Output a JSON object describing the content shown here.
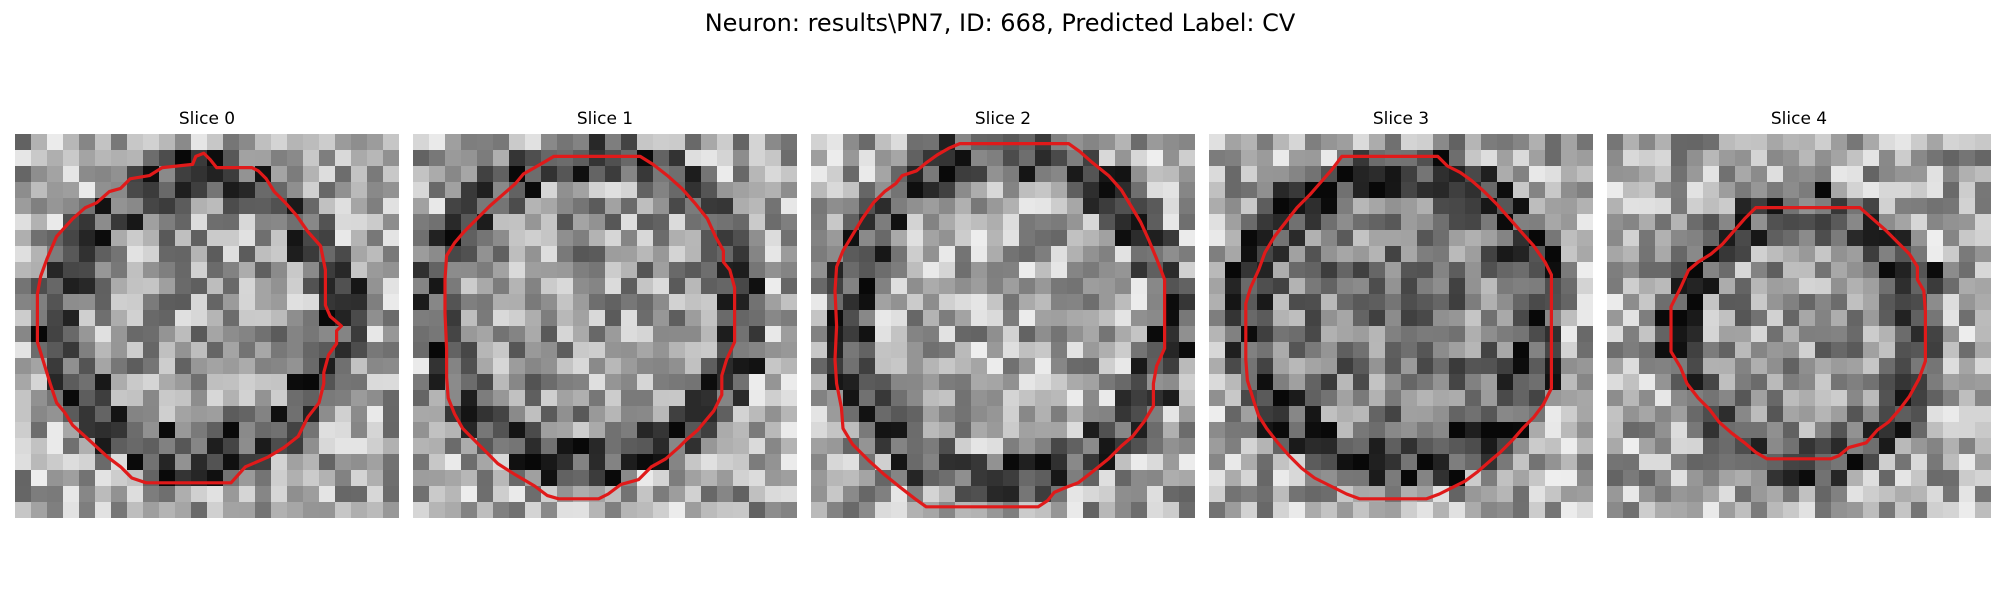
{
  "figure": {
    "title": "Neuron: results\\PN7, ID: 668, Predicted Label: CV"
  },
  "slices": [
    {
      "title": "Slice 0",
      "seed": 11,
      "blob": {
        "cx": 11.5,
        "cy": 11.5,
        "r": 8.8,
        "inner": 0.62,
        "ring": 0.3
      },
      "contour": [
        [
          11.8,
          1.2
        ],
        [
          11.3,
          1.4
        ],
        [
          11.1,
          1.9
        ],
        [
          9.2,
          2.1
        ],
        [
          8.4,
          2.6
        ],
        [
          7.2,
          2.8
        ],
        [
          6.6,
          3.4
        ],
        [
          5.9,
          3.6
        ],
        [
          5.1,
          4.3
        ],
        [
          4.4,
          4.6
        ],
        [
          3.6,
          5.3
        ],
        [
          2.6,
          6.4
        ],
        [
          2.0,
          7.8
        ],
        [
          1.6,
          8.9
        ],
        [
          1.4,
          10.0
        ],
        [
          1.4,
          11.6
        ],
        [
          1.4,
          13.0
        ],
        [
          1.8,
          14.3
        ],
        [
          2.2,
          15.6
        ],
        [
          2.6,
          16.8
        ],
        [
          3.1,
          17.4
        ],
        [
          3.6,
          18.2
        ],
        [
          4.6,
          19.1
        ],
        [
          5.8,
          20.2
        ],
        [
          6.6,
          20.8
        ],
        [
          7.3,
          21.5
        ],
        [
          8.2,
          21.8
        ],
        [
          12.3,
          21.8
        ],
        [
          13.5,
          21.8
        ],
        [
          14.4,
          20.8
        ],
        [
          15.8,
          20.2
        ],
        [
          16.8,
          19.6
        ],
        [
          17.7,
          18.9
        ],
        [
          18.3,
          17.7
        ],
        [
          19.0,
          16.8
        ],
        [
          19.3,
          15.6
        ],
        [
          19.3,
          14.9
        ],
        [
          19.6,
          13.8
        ],
        [
          20.1,
          13.1
        ],
        [
          20.1,
          12.3
        ],
        [
          20.4,
          12.0
        ],
        [
          19.7,
          11.4
        ],
        [
          19.4,
          10.7
        ],
        [
          19.4,
          8.5
        ],
        [
          19.1,
          7.0
        ],
        [
          18.3,
          6.1
        ],
        [
          17.6,
          5.1
        ],
        [
          16.9,
          4.3
        ],
        [
          16.2,
          3.6
        ],
        [
          15.7,
          2.8
        ],
        [
          15.2,
          2.3
        ],
        [
          14.8,
          2.1
        ],
        [
          12.6,
          2.1
        ],
        [
          12.2,
          1.6
        ]
      ]
    },
    {
      "title": "Slice 1",
      "seed": 23,
      "blob": {
        "cx": 11.2,
        "cy": 11.0,
        "r": 9.6,
        "inner": 0.6,
        "ring": 0.28
      },
      "contour": [
        [
          8.8,
          1.4
        ],
        [
          14.2,
          1.4
        ],
        [
          15.0,
          1.9
        ],
        [
          15.9,
          2.6
        ],
        [
          16.8,
          3.4
        ],
        [
          17.6,
          4.3
        ],
        [
          18.4,
          5.3
        ],
        [
          18.9,
          6.4
        ],
        [
          19.4,
          7.3
        ],
        [
          19.4,
          8.0
        ],
        [
          19.8,
          8.5
        ],
        [
          20.1,
          9.6
        ],
        [
          20.1,
          11.0
        ],
        [
          20.1,
          12.3
        ],
        [
          20.1,
          13.0
        ],
        [
          19.6,
          14.1
        ],
        [
          19.3,
          15.1
        ],
        [
          19.3,
          16.3
        ],
        [
          18.8,
          17.3
        ],
        [
          18.3,
          17.9
        ],
        [
          17.8,
          18.5
        ],
        [
          17.1,
          19.1
        ],
        [
          16.6,
          19.6
        ],
        [
          15.8,
          20.3
        ],
        [
          14.9,
          20.8
        ],
        [
          14.1,
          21.6
        ],
        [
          13.0,
          21.9
        ],
        [
          12.2,
          22.5
        ],
        [
          11.6,
          22.8
        ],
        [
          9.1,
          22.8
        ],
        [
          8.4,
          22.6
        ],
        [
          7.6,
          22.0
        ],
        [
          6.4,
          21.3
        ],
        [
          5.3,
          20.6
        ],
        [
          4.6,
          19.9
        ],
        [
          3.9,
          19.2
        ],
        [
          3.1,
          18.4
        ],
        [
          2.6,
          17.5
        ],
        [
          2.2,
          16.5
        ],
        [
          2.1,
          15.2
        ],
        [
          2.1,
          13.4
        ],
        [
          2.0,
          11.2
        ],
        [
          2.0,
          9.1
        ],
        [
          2.1,
          7.6
        ],
        [
          2.6,
          6.8
        ],
        [
          3.2,
          6.1
        ],
        [
          4.0,
          5.3
        ],
        [
          4.8,
          4.5
        ],
        [
          5.6,
          3.8
        ],
        [
          6.4,
          3.1
        ],
        [
          6.9,
          2.5
        ],
        [
          7.6,
          2.1
        ],
        [
          8.3,
          1.7
        ]
      ]
    },
    {
      "title": "Slice 2",
      "seed": 37,
      "blob": {
        "cx": 12.2,
        "cy": 11.4,
        "r": 10.2,
        "inner": 0.66,
        "ring": 0.3
      },
      "contour": [
        [
          9.3,
          0.6
        ],
        [
          16.1,
          0.6
        ],
        [
          16.8,
          1.1
        ],
        [
          17.6,
          1.8
        ],
        [
          18.6,
          2.6
        ],
        [
          19.4,
          3.5
        ],
        [
          20.0,
          4.5
        ],
        [
          20.6,
          5.5
        ],
        [
          21.1,
          6.6
        ],
        [
          21.6,
          7.8
        ],
        [
          22.1,
          9.1
        ],
        [
          22.1,
          10.5
        ],
        [
          22.1,
          12.0
        ],
        [
          22.1,
          13.4
        ],
        [
          21.6,
          14.5
        ],
        [
          21.4,
          15.6
        ],
        [
          21.4,
          17.0
        ],
        [
          20.8,
          18.0
        ],
        [
          20.1,
          18.9
        ],
        [
          19.4,
          19.5
        ],
        [
          18.6,
          20.3
        ],
        [
          17.6,
          21.1
        ],
        [
          16.7,
          21.8
        ],
        [
          15.9,
          22.1
        ],
        [
          15.2,
          22.4
        ],
        [
          14.8,
          22.9
        ],
        [
          14.2,
          23.3
        ],
        [
          7.2,
          23.3
        ],
        [
          6.5,
          22.8
        ],
        [
          5.6,
          22.1
        ],
        [
          4.6,
          21.3
        ],
        [
          3.6,
          20.4
        ],
        [
          2.6,
          19.4
        ],
        [
          2.0,
          18.4
        ],
        [
          1.9,
          17.1
        ],
        [
          1.6,
          15.6
        ],
        [
          1.5,
          14.1
        ],
        [
          1.6,
          12.0
        ],
        [
          1.5,
          9.8
        ],
        [
          1.6,
          8.3
        ],
        [
          2.0,
          7.3
        ],
        [
          2.6,
          6.3
        ],
        [
          3.2,
          5.3
        ],
        [
          3.9,
          4.3
        ],
        [
          4.6,
          3.6
        ],
        [
          5.3,
          3.1
        ],
        [
          5.7,
          2.6
        ],
        [
          6.6,
          2.3
        ],
        [
          7.2,
          1.8
        ],
        [
          7.9,
          1.3
        ],
        [
          8.6,
          0.9
        ]
      ]
    },
    {
      "title": "Slice 3",
      "seed": 53,
      "blob": {
        "cx": 11.6,
        "cy": 11.5,
        "r": 9.4,
        "inner": 0.5,
        "ring": 0.26
      },
      "contour": [
        [
          8.3,
          1.4
        ],
        [
          14.3,
          1.4
        ],
        [
          14.9,
          2.0
        ],
        [
          15.7,
          2.4
        ],
        [
          16.4,
          2.9
        ],
        [
          17.2,
          3.6
        ],
        [
          18.0,
          4.4
        ],
        [
          18.8,
          5.3
        ],
        [
          19.5,
          6.1
        ],
        [
          20.3,
          7.0
        ],
        [
          21.0,
          8.0
        ],
        [
          21.4,
          8.8
        ],
        [
          21.4,
          10.4
        ],
        [
          21.4,
          12.6
        ],
        [
          21.4,
          14.6
        ],
        [
          21.4,
          15.9
        ],
        [
          20.9,
          16.9
        ],
        [
          20.3,
          17.7
        ],
        [
          19.6,
          18.4
        ],
        [
          19.0,
          19.1
        ],
        [
          18.2,
          19.9
        ],
        [
          17.6,
          20.4
        ],
        [
          16.8,
          21.1
        ],
        [
          16.0,
          21.7
        ],
        [
          15.2,
          22.1
        ],
        [
          14.4,
          22.5
        ],
        [
          13.6,
          22.8
        ],
        [
          9.4,
          22.8
        ],
        [
          8.6,
          22.5
        ],
        [
          7.6,
          22.0
        ],
        [
          6.6,
          21.5
        ],
        [
          5.8,
          20.9
        ],
        [
          5.0,
          20.1
        ],
        [
          4.3,
          19.3
        ],
        [
          3.6,
          18.4
        ],
        [
          3.1,
          17.6
        ],
        [
          2.8,
          16.7
        ],
        [
          2.4,
          15.4
        ],
        [
          2.3,
          14.1
        ],
        [
          2.3,
          12.4
        ],
        [
          2.3,
          10.6
        ],
        [
          2.6,
          9.6
        ],
        [
          3.1,
          8.5
        ],
        [
          3.5,
          7.4
        ],
        [
          4.1,
          6.4
        ],
        [
          4.8,
          5.5
        ],
        [
          5.5,
          4.6
        ],
        [
          6.3,
          3.8
        ],
        [
          7.0,
          3.0
        ],
        [
          7.7,
          2.2
        ]
      ]
    },
    {
      "title": "Slice 4",
      "seed": 71,
      "blob": {
        "cx": 12.3,
        "cy": 12.6,
        "r": 7.8,
        "inner": 0.58,
        "ring": 0.3
      },
      "contour": [
        [
          9.3,
          4.6
        ],
        [
          15.8,
          4.6
        ],
        [
          16.6,
          5.3
        ],
        [
          17.4,
          6.0
        ],
        [
          18.1,
          6.7
        ],
        [
          18.9,
          7.5
        ],
        [
          19.4,
          8.3
        ],
        [
          19.4,
          9.1
        ],
        [
          19.8,
          9.8
        ],
        [
          19.9,
          11.1
        ],
        [
          19.9,
          12.6
        ],
        [
          19.9,
          14.2
        ],
        [
          19.5,
          15.3
        ],
        [
          18.9,
          16.4
        ],
        [
          18.3,
          17.2
        ],
        [
          17.6,
          18.0
        ],
        [
          16.9,
          18.5
        ],
        [
          16.2,
          19.3
        ],
        [
          15.1,
          19.6
        ],
        [
          14.5,
          20.1
        ],
        [
          14.0,
          20.3
        ],
        [
          10.0,
          20.3
        ],
        [
          9.3,
          19.9
        ],
        [
          8.6,
          19.3
        ],
        [
          7.8,
          18.7
        ],
        [
          7.0,
          18.0
        ],
        [
          6.4,
          17.2
        ],
        [
          5.7,
          16.5
        ],
        [
          5.0,
          15.6
        ],
        [
          4.6,
          14.6
        ],
        [
          4.0,
          13.6
        ],
        [
          4.0,
          12.1
        ],
        [
          4.0,
          10.8
        ],
        [
          4.6,
          9.6
        ],
        [
          5.1,
          8.5
        ],
        [
          5.7,
          8.0
        ],
        [
          6.5,
          7.5
        ],
        [
          7.2,
          6.9
        ],
        [
          7.9,
          6.1
        ],
        [
          8.6,
          5.3
        ]
      ]
    }
  ],
  "colors": {
    "contour": "#e01a1a"
  }
}
